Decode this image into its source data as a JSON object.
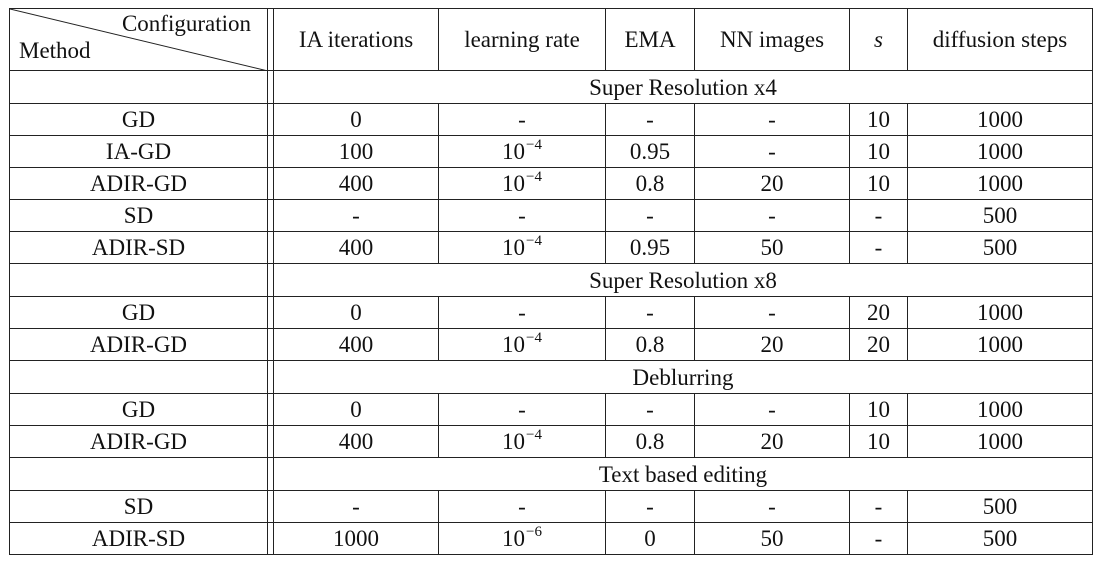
{
  "header": {
    "configuration": "Configuration",
    "method": "Method",
    "columns": [
      "IA iterations",
      "learning rate",
      "EMA",
      "NN images",
      "s",
      "diffusion steps"
    ]
  },
  "sections": [
    {
      "title": "Super Resolution x4",
      "rows": [
        {
          "method": "GD",
          "ia": "0",
          "lr_base": "-",
          "lr_exp": "",
          "ema": "-",
          "nn": "-",
          "s": "10",
          "steps": "1000"
        },
        {
          "method": "IA-GD",
          "ia": "100",
          "lr_base": "10",
          "lr_exp": "−4",
          "ema": "0.95",
          "nn": "-",
          "s": "10",
          "steps": "1000"
        },
        {
          "method": "ADIR-GD",
          "ia": "400",
          "lr_base": "10",
          "lr_exp": "−4",
          "ema": "0.8",
          "nn": "20",
          "s": "10",
          "steps": "1000"
        },
        {
          "method": "SD",
          "ia": "-",
          "lr_base": "-",
          "lr_exp": "",
          "ema": "-",
          "nn": "-",
          "s": "-",
          "steps": "500"
        },
        {
          "method": "ADIR-SD",
          "ia": "400",
          "lr_base": "10",
          "lr_exp": "−4",
          "ema": "0.95",
          "nn": "50",
          "s": "-",
          "steps": "500"
        }
      ]
    },
    {
      "title": "Super Resolution x8",
      "rows": [
        {
          "method": "GD",
          "ia": "0",
          "lr_base": "-",
          "lr_exp": "",
          "ema": "-",
          "nn": "-",
          "s": "20",
          "steps": "1000"
        },
        {
          "method": "ADIR-GD",
          "ia": "400",
          "lr_base": "10",
          "lr_exp": "−4",
          "ema": "0.8",
          "nn": "20",
          "s": "20",
          "steps": "1000"
        }
      ]
    },
    {
      "title": "Deblurring",
      "rows": [
        {
          "method": "GD",
          "ia": "0",
          "lr_base": "-",
          "lr_exp": "",
          "ema": "-",
          "nn": "-",
          "s": "10",
          "steps": "1000"
        },
        {
          "method": "ADIR-GD",
          "ia": "400",
          "lr_base": "10",
          "lr_exp": "−4",
          "ema": "0.8",
          "nn": "20",
          "s": "10",
          "steps": "1000"
        }
      ]
    },
    {
      "title": "Text based editing",
      "rows": [
        {
          "method": "SD",
          "ia": "-",
          "lr_base": "-",
          "lr_exp": "",
          "ema": "-",
          "nn": "-",
          "s": "-",
          "steps": "500"
        },
        {
          "method": "ADIR-SD",
          "ia": "1000",
          "lr_base": "10",
          "lr_exp": "−6",
          "ema": "0",
          "nn": "50",
          "s": "-",
          "steps": "500"
        }
      ]
    }
  ]
}
